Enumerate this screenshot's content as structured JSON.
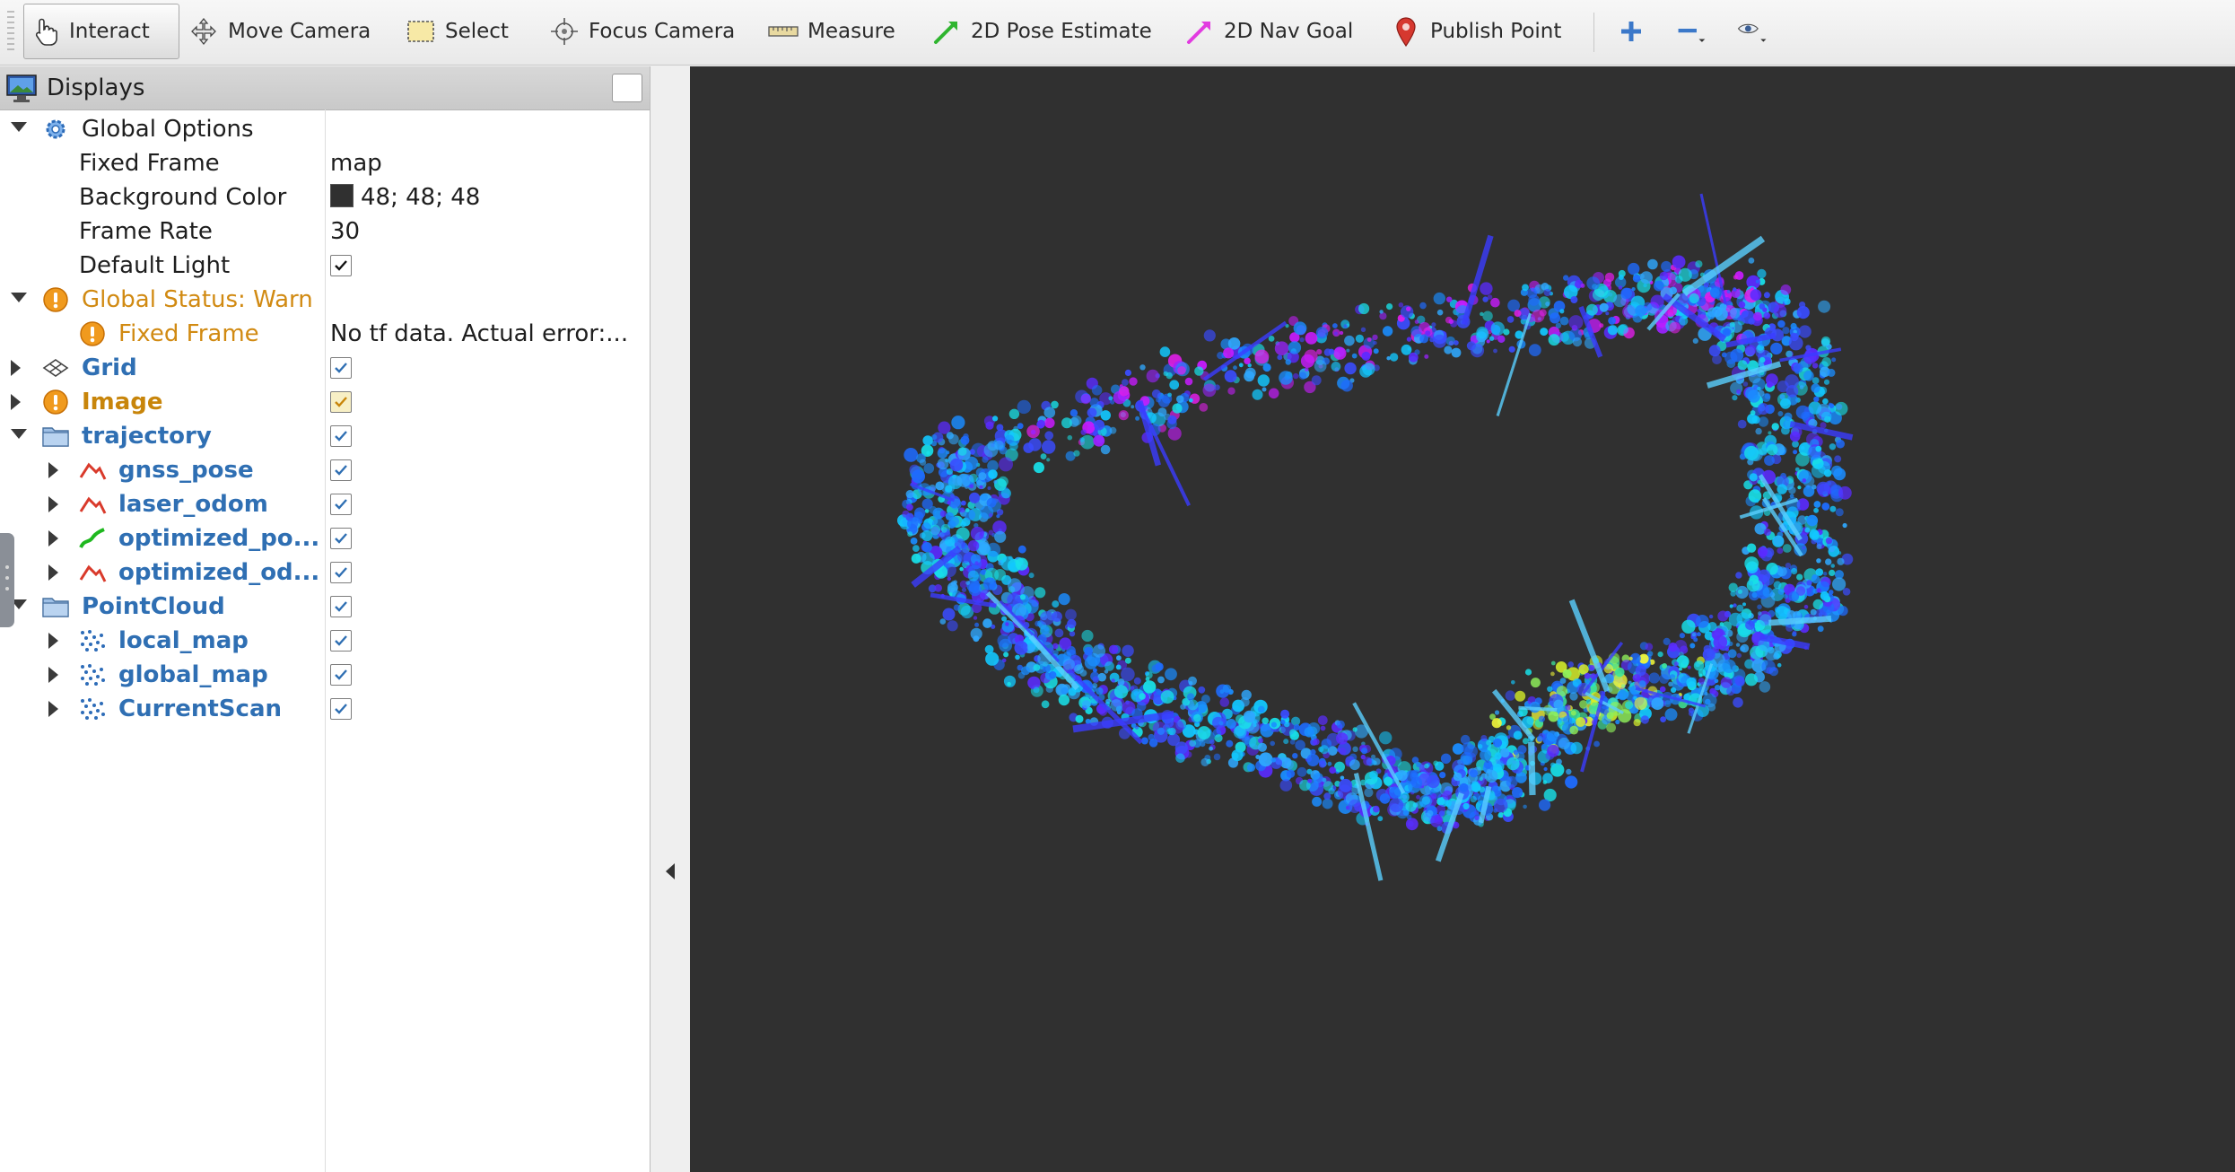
{
  "toolbar": {
    "tools": [
      {
        "label": "Interact",
        "icon": "hand-pointer-icon",
        "active": true
      },
      {
        "label": "Move Camera",
        "icon": "move-camera-icon",
        "active": false
      },
      {
        "label": "Select",
        "icon": "select-box-icon",
        "active": false
      },
      {
        "label": "Focus Camera",
        "icon": "focus-target-icon",
        "active": false
      },
      {
        "label": "Measure",
        "icon": "ruler-icon",
        "active": false
      },
      {
        "label": "2D Pose Estimate",
        "icon": "green-arrow-icon",
        "active": false
      },
      {
        "label": "2D Nav Goal",
        "icon": "pink-arrow-icon",
        "active": false
      },
      {
        "label": "Publish Point",
        "icon": "map-pin-icon",
        "active": false
      }
    ],
    "extra_icons": [
      "plus-icon",
      "minus-icon",
      "eye-icon"
    ]
  },
  "displays": {
    "title": "Displays",
    "rows": [
      {
        "label": "Global Options",
        "icon": "gear-icon",
        "style": "plain",
        "level": 0,
        "expand": "down"
      },
      {
        "label": "Fixed Frame",
        "value": "map",
        "style": "plain",
        "level": 1
      },
      {
        "label": "Background Color",
        "value": "48; 48; 48",
        "swatch": "#303030",
        "style": "plain",
        "level": 1
      },
      {
        "label": "Frame Rate",
        "value": "30",
        "style": "plain",
        "level": 1
      },
      {
        "label": "Default Light",
        "checked": true,
        "style": "plain",
        "level": 1
      },
      {
        "label": "Global Status: Warn",
        "icon": "warning-icon",
        "style": "warn",
        "level": 0,
        "expand": "down"
      },
      {
        "label": "Fixed Frame",
        "icon": "warning-icon",
        "value": "No tf data.  Actual error:...",
        "style": "warn",
        "level": 1
      },
      {
        "label": "Grid",
        "icon": "grid-icon",
        "checked": true,
        "style": "blue",
        "level": 0,
        "expand": "right"
      },
      {
        "label": "Image",
        "icon": "warning-icon",
        "checked": true,
        "style": "warnb",
        "level": 0,
        "expand": "right"
      },
      {
        "label": "trajectory",
        "icon": "folder-icon",
        "checked": true,
        "style": "blue",
        "level": 0,
        "expand": "down"
      },
      {
        "label": "gnss_pose",
        "icon": "path-red-icon",
        "checked": true,
        "style": "blue",
        "level": 1,
        "expand": "right"
      },
      {
        "label": "laser_odom",
        "icon": "path-red-icon",
        "checked": true,
        "style": "blue",
        "level": 1,
        "expand": "right"
      },
      {
        "label": "optimized_po...",
        "icon": "path-green-icon",
        "checked": true,
        "style": "blue",
        "level": 1,
        "expand": "right"
      },
      {
        "label": "optimized_od...",
        "icon": "path-red-icon",
        "checked": true,
        "style": "blue",
        "level": 1,
        "expand": "right"
      },
      {
        "label": "PointCloud",
        "icon": "folder-icon",
        "checked": true,
        "style": "blue",
        "level": 0,
        "expand": "down"
      },
      {
        "label": "local_map",
        "icon": "pointcloud-icon",
        "checked": true,
        "style": "blue",
        "level": 1,
        "expand": "right"
      },
      {
        "label": "global_map",
        "icon": "pointcloud-icon",
        "checked": true,
        "style": "blue",
        "level": 1,
        "expand": "right"
      },
      {
        "label": "CurrentScan",
        "icon": "pointcloud-icon",
        "checked": true,
        "style": "blue",
        "level": 1,
        "expand": "right"
      }
    ]
  },
  "viewport": {
    "background": "#303030",
    "content": "point-cloud-map"
  }
}
